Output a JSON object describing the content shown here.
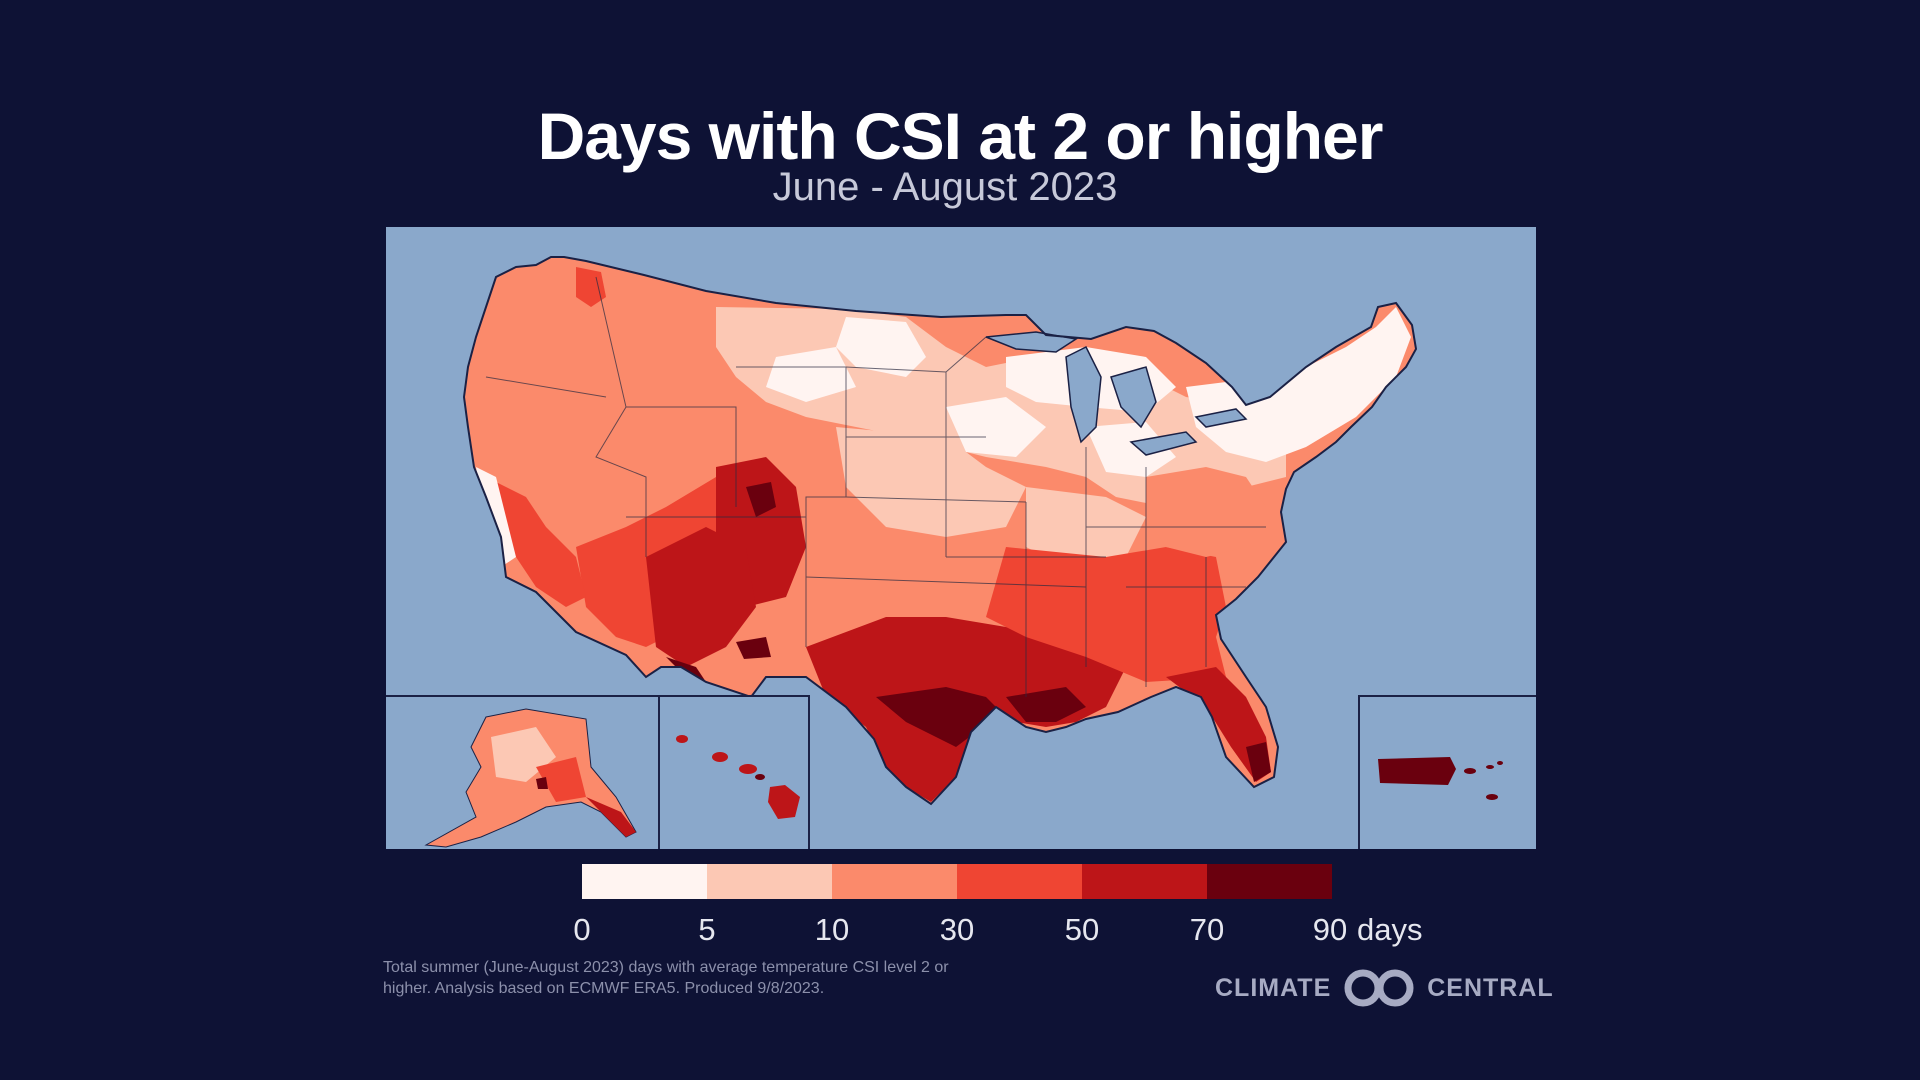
{
  "header": {
    "title": "Days with CSI at 2 or higher",
    "subtitle": "June - August 2023"
  },
  "legend": {
    "ticks": [
      "0",
      "5",
      "10",
      "30",
      "50",
      "70",
      "90"
    ],
    "unit": "days",
    "colors": [
      "#fff4f1",
      "#fcc8b4",
      "#fb8a6b",
      "#ef4533",
      "#bd1518",
      "#6a000e"
    ]
  },
  "footnote": {
    "line1": "Total summer (June-August 2023) days with average temperature CSI level 2 or",
    "line2": "higher. Analysis based on ECMWF ERA5. Produced 9/8/2023."
  },
  "logo": {
    "left_text": "CLIMATE",
    "right_text": "CENTRAL"
  },
  "map": {
    "ocean_color": "#8aa8cb",
    "insets": [
      "Alaska",
      "Hawaii",
      "Puerto Rico"
    ]
  }
}
